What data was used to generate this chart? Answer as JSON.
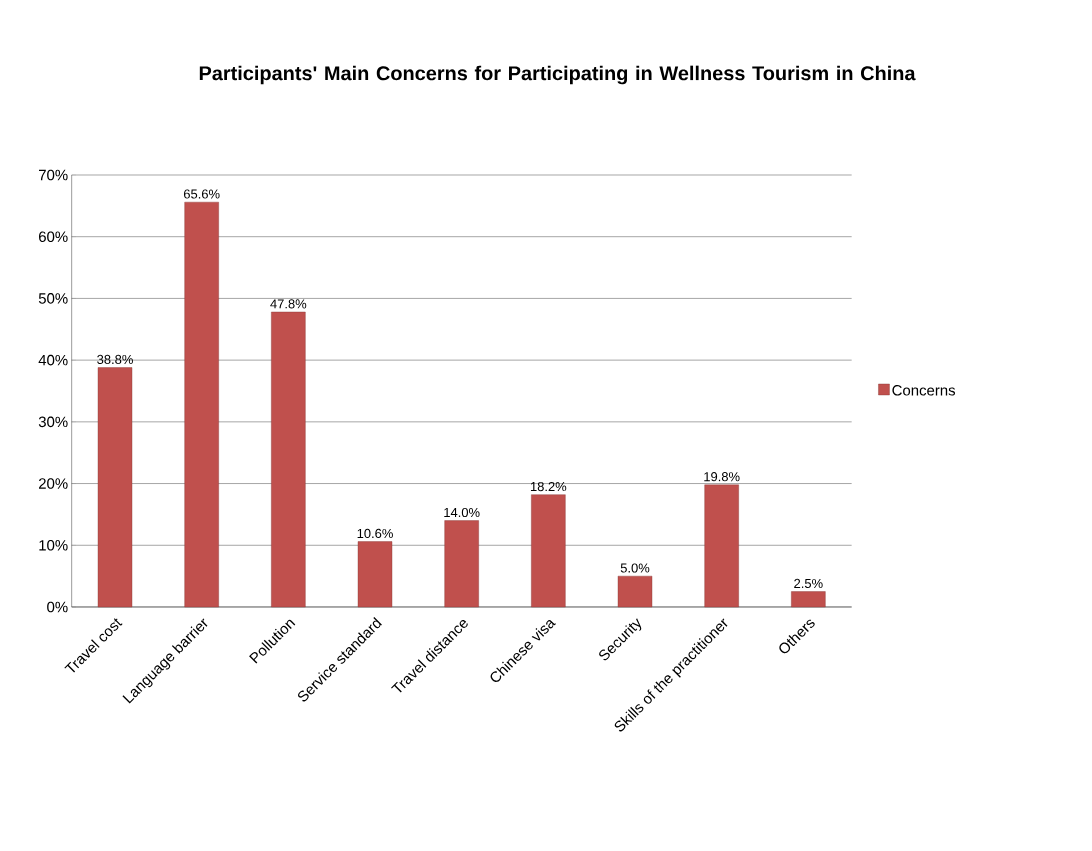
{
  "chart_data": {
    "type": "bar",
    "title": "Participants' Main Concerns for Participating in Wellness Tourism in China",
    "categories": [
      "Travel cost",
      "Language barrier",
      "Pollution",
      "Service standard",
      "Travel distance",
      "Chinese visa",
      "Security",
      "Skills of the practitioner",
      "Others"
    ],
    "series": [
      {
        "name": "Concerns",
        "color": "#c0504d",
        "values": [
          38.8,
          65.6,
          47.8,
          10.6,
          14.0,
          18.2,
          5.0,
          19.8,
          2.5
        ],
        "value_labels": [
          "38.8%",
          "65.6%",
          "47.8%",
          "10.6%",
          "14.0%",
          "18.2%",
          "5.0%",
          "19.8%",
          "2.5%"
        ]
      }
    ],
    "ylim": [
      0,
      70
    ],
    "yticks": [
      {
        "value": 0,
        "label": "0%"
      },
      {
        "value": 10,
        "label": "10%"
      },
      {
        "value": 20,
        "label": "20%"
      },
      {
        "value": 30,
        "label": "30%"
      },
      {
        "value": 40,
        "label": "40%"
      },
      {
        "value": 50,
        "label": "50%"
      },
      {
        "value": 60,
        "label": "60%"
      },
      {
        "value": 70,
        "label": "70%"
      }
    ],
    "grid": "y",
    "legend": "right"
  }
}
